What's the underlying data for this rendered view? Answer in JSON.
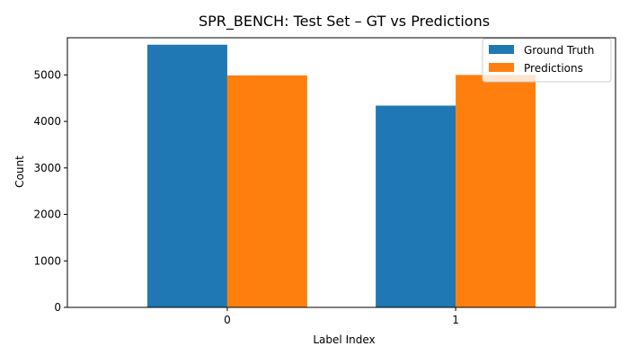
{
  "chart_data": {
    "type": "bar",
    "title": "SPR_BENCH: Test Set – GT vs Predictions",
    "xlabel": "Label Index",
    "ylabel": "Count",
    "categories": [
      "0",
      "1"
    ],
    "series": [
      {
        "name": "Ground Truth",
        "values": [
          5650,
          4340
        ],
        "color": "#1f77b4"
      },
      {
        "name": "Predictions",
        "values": [
          4990,
          5000
        ],
        "color": "#ff7f0e"
      }
    ],
    "ylim": [
      0,
      5800
    ],
    "yticks": [
      0,
      1000,
      2000,
      3000,
      4000,
      5000
    ],
    "grid": false,
    "legend_position": "top-right"
  }
}
